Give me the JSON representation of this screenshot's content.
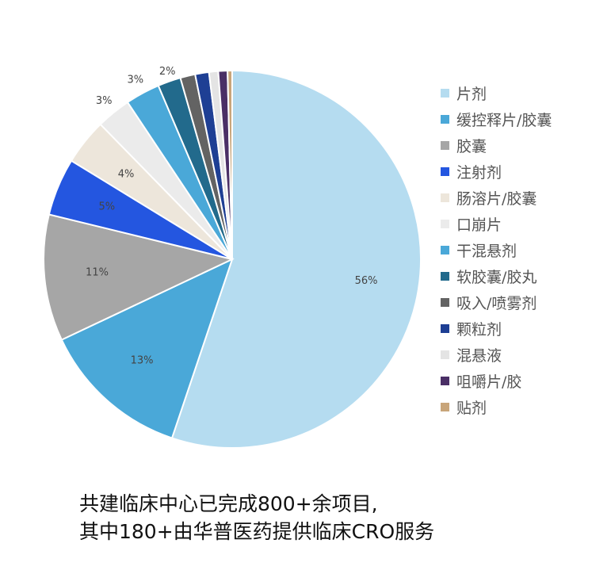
{
  "chart_data": {
    "type": "pie",
    "slices": [
      {
        "label": "片剂",
        "value": 56,
        "color": "#b5dcf0",
        "value_label": "56%"
      },
      {
        "label": "缓控释片/胶囊",
        "value": 13,
        "color": "#4aa8d8",
        "value_label": "13%"
      },
      {
        "label": "胶囊",
        "value": 11,
        "color": "#a6a6a6",
        "value_label": "11%"
      },
      {
        "label": "注射剂",
        "value": 5,
        "color": "#2456e0",
        "value_label": "5%"
      },
      {
        "label": "肠溶片/胶囊",
        "value": 4,
        "color": "#ede6db",
        "value_label": "4%"
      },
      {
        "label": "口崩片",
        "value": 3,
        "color": "#ebebeb",
        "value_label": "3%"
      },
      {
        "label": "干混悬剂",
        "value": 3,
        "color": "#4aa8d8",
        "value_label": "3%"
      },
      {
        "label": "软胶囊/胶丸",
        "value": 2,
        "color": "#226a8c",
        "value_label": "2%"
      },
      {
        "label": "吸入/喷雾剂",
        "value": 1.3,
        "color": "#636363",
        "value_label": ""
      },
      {
        "label": "颗粒剂",
        "value": 1.2,
        "color": "#1e3f94",
        "value_label": ""
      },
      {
        "label": "混悬液",
        "value": 0.8,
        "color": "#e4e4e4",
        "value_label": ""
      },
      {
        "label": "咀嚼片/胶",
        "value": 0.8,
        "color": "#4a2f66",
        "value_label": ""
      },
      {
        "label": "贴剂",
        "value": 0.4,
        "color": "#c8a57a",
        "value_label": ""
      }
    ],
    "legend_position": "right"
  },
  "caption": {
    "line1": "共建临床中心已完成800+余项目,",
    "line2": "其中180+由华普医药提供临床CRO服务"
  }
}
